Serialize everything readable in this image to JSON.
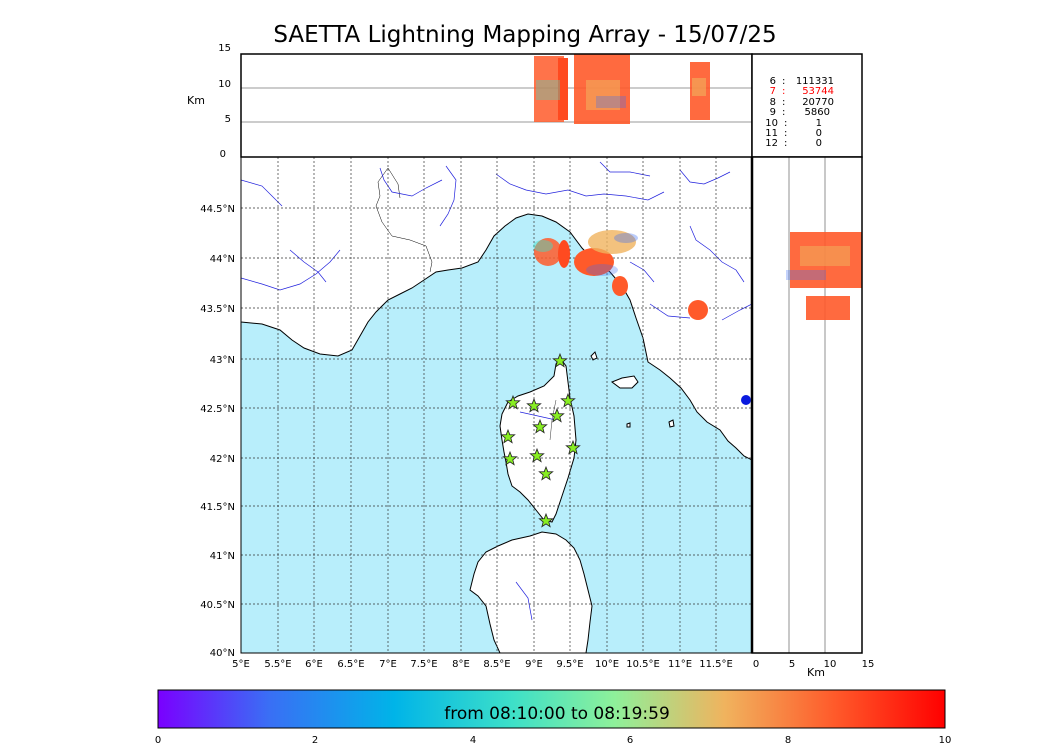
{
  "title": "SAETTA Lightning Mapping Array - 15/07/25",
  "top_panel": {
    "ylabel": "Km",
    "yticks": [
      "0",
      "5",
      "10",
      "15"
    ]
  },
  "side_panel": {
    "xlabel": "Km",
    "xticks": [
      "0",
      "5",
      "10",
      "15"
    ]
  },
  "map": {
    "lon_ticks": [
      "5°E",
      "5.5°E",
      "6°E",
      "6.5°E",
      "7°E",
      "7.5°E",
      "8°E",
      "8.5°E",
      "9°E",
      "9.5°E",
      "10°E",
      "10.5°E",
      "11°E",
      "11.5°E"
    ],
    "lat_ticks": [
      "40°N",
      "40.5°N",
      "41°N",
      "41.5°N",
      "42°N",
      "42.5°N",
      "43°N",
      "43.5°N",
      "44°N",
      "44.5°N"
    ],
    "sea_color": "#b8eefb",
    "station_color": "#88ee22",
    "station_count": 12
  },
  "stats": [
    {
      "n": "6",
      "v": "111331",
      "color": "#000000"
    },
    {
      "n": "7",
      "v": "53744",
      "color": "#ff0000"
    },
    {
      "n": "8",
      "v": "20770",
      "color": "#000000"
    },
    {
      "n": "9",
      "v": "5860",
      "color": "#000000"
    },
    {
      "n": "10",
      "v": "1",
      "color": "#000000"
    },
    {
      "n": "11",
      "v": "0",
      "color": "#000000"
    },
    {
      "n": "12",
      "v": "0",
      "color": "#000000"
    }
  ],
  "colorbar": {
    "label": "from 08:10:00 to 08:19:59",
    "ticks": [
      "0",
      "2",
      "4",
      "6",
      "8",
      "10"
    ],
    "colors": [
      "#7a00ff",
      "#3a6ef5",
      "#00b4e8",
      "#3de0c8",
      "#8ef09a",
      "#f0b35e",
      "#ff5a2a",
      "#ff0000"
    ]
  }
}
